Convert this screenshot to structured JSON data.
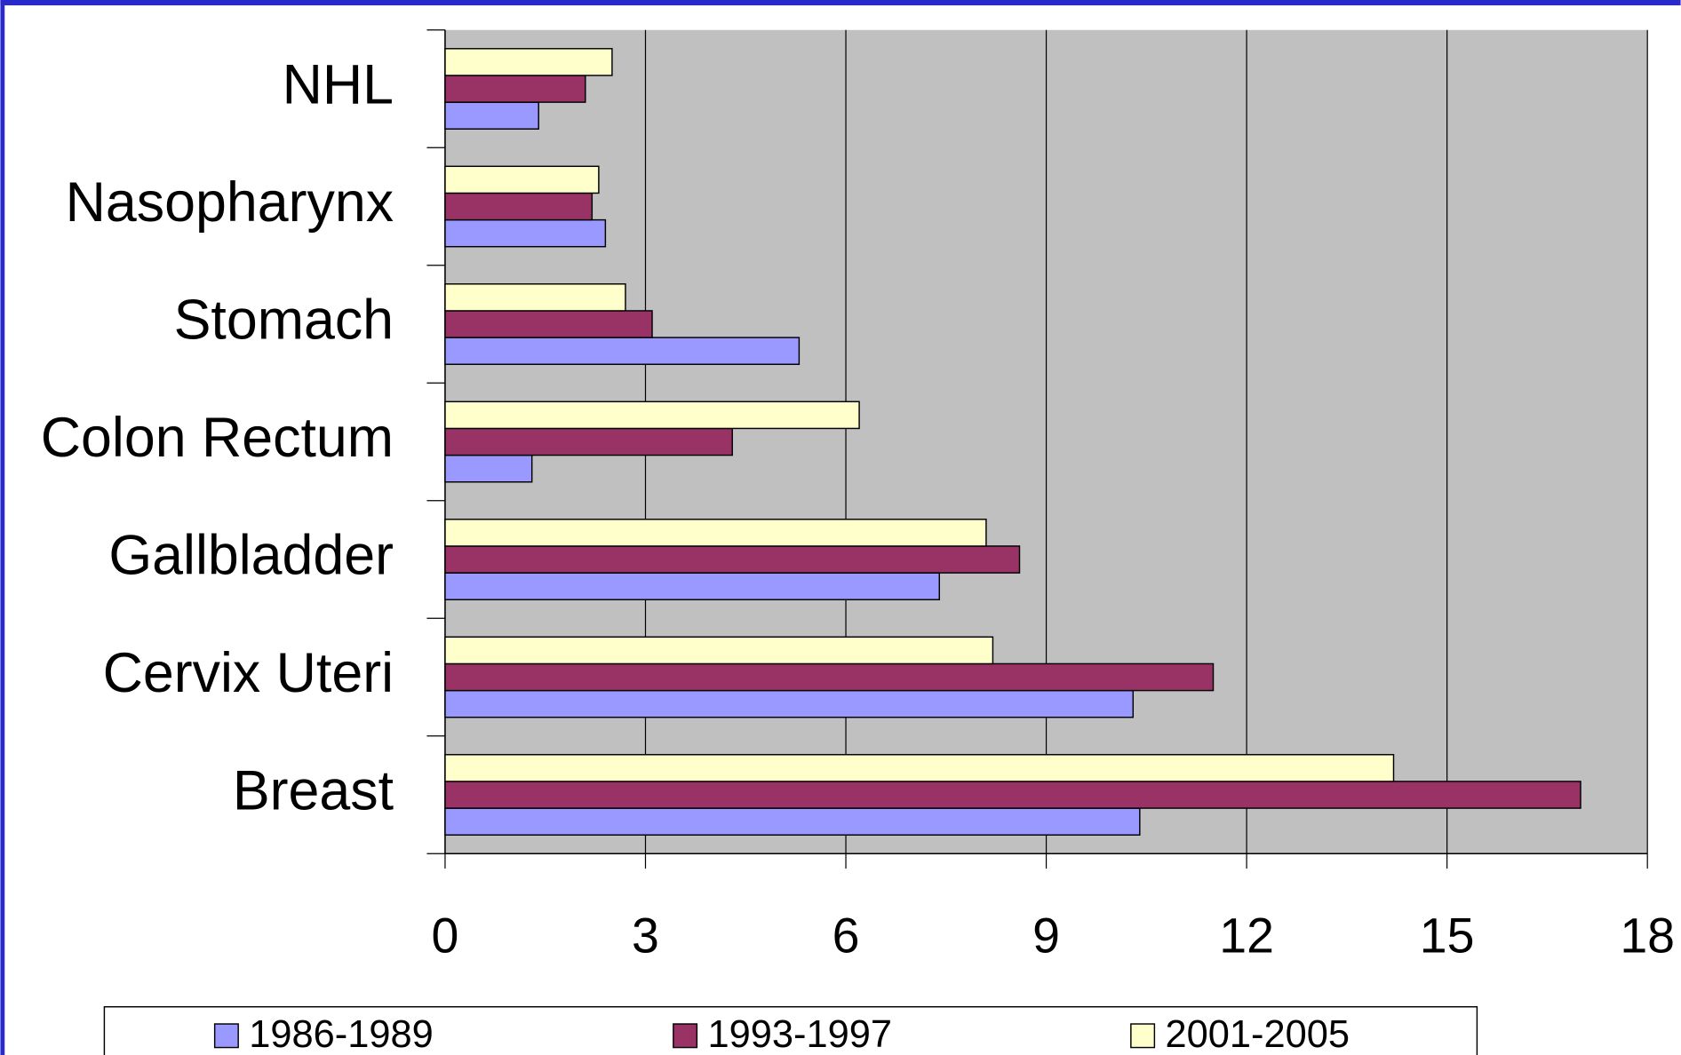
{
  "chart_data": {
    "type": "bar",
    "orientation": "horizontal",
    "categories": [
      "NHL",
      "Nasopharynx",
      "Stomach",
      "Colon Rectum",
      "Gallbladder",
      "Cervix Uteri",
      "Breast"
    ],
    "series": [
      {
        "name": "1986-1989",
        "color": "#9999ff",
        "values": [
          1.4,
          2.4,
          5.3,
          1.3,
          7.4,
          10.3,
          10.4
        ]
      },
      {
        "name": "1993-1997",
        "color": "#993366",
        "values": [
          2.1,
          2.2,
          3.1,
          4.3,
          8.6,
          11.5,
          17.0
        ]
      },
      {
        "name": "2001-2005",
        "color": "#ffffcc",
        "values": [
          2.5,
          2.3,
          2.7,
          6.2,
          8.1,
          8.2,
          14.2
        ]
      }
    ],
    "xlim": [
      0,
      18
    ],
    "xticks": [
      0,
      3,
      6,
      9,
      12,
      15,
      18
    ],
    "grid": true,
    "legend": "bottom"
  }
}
